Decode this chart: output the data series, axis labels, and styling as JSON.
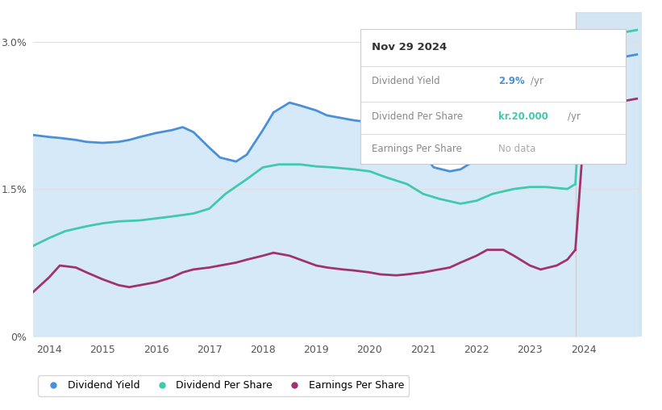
{
  "bg_color": "#ffffff",
  "plot_bg_color": "#ffffff",
  "area_fill_color": "#d6e9f8",
  "future_fill_color": "#cce0f0",
  "grid_color": "#e0e0e0",
  "xticks": [
    2014,
    2015,
    2016,
    2017,
    2018,
    2019,
    2020,
    2021,
    2022,
    2023,
    2024
  ],
  "future_start_x": 2023.85,
  "ylim": [
    0,
    3.3
  ],
  "xlim": [
    2013.7,
    2025.1
  ],
  "tooltip_date": "Nov 29 2024",
  "tooltip_div_yield_label": "Dividend Yield",
  "tooltip_div_yield_value": "2.9%",
  "tooltip_div_yield_unit": "/yr",
  "tooltip_div_per_share_label": "Dividend Per Share",
  "tooltip_div_per_share_value": "kr.20.000",
  "tooltip_div_per_share_unit": "/yr",
  "tooltip_eps_label": "Earnings Per Share",
  "tooltip_eps_value": "No data",
  "div_yield_color": "#4a90d9",
  "div_per_share_color": "#40c8b0",
  "earnings_color": "#a0336e",
  "legend_div_yield": "Dividend Yield",
  "legend_div_per_share": "Dividend Per Share",
  "legend_earnings": "Earnings Per Share",
  "div_yield_x": [
    2013.7,
    2014.0,
    2014.2,
    2014.5,
    2014.7,
    2015.0,
    2015.3,
    2015.5,
    2015.7,
    2016.0,
    2016.3,
    2016.5,
    2016.7,
    2017.0,
    2017.2,
    2017.5,
    2017.7,
    2018.0,
    2018.2,
    2018.5,
    2018.7,
    2019.0,
    2019.2,
    2019.5,
    2019.7,
    2020.0,
    2020.2,
    2020.5,
    2020.7,
    2021.0,
    2021.2,
    2021.5,
    2021.7,
    2022.0,
    2022.2,
    2022.5,
    2022.7,
    2023.0,
    2023.2,
    2023.5,
    2023.7,
    2023.85,
    2024.0,
    2024.2,
    2024.5,
    2024.8,
    2025.0
  ],
  "div_yield_y": [
    2.05,
    2.03,
    2.02,
    2.0,
    1.98,
    1.97,
    1.98,
    2.0,
    2.03,
    2.07,
    2.1,
    2.13,
    2.08,
    1.92,
    1.82,
    1.78,
    1.85,
    2.1,
    2.28,
    2.38,
    2.35,
    2.3,
    2.25,
    2.22,
    2.2,
    2.18,
    2.12,
    2.1,
    2.05,
    1.85,
    1.72,
    1.68,
    1.7,
    1.8,
    1.88,
    1.87,
    1.85,
    1.83,
    1.78,
    1.8,
    1.85,
    1.92,
    2.7,
    2.82,
    2.83,
    2.85,
    2.87
  ],
  "div_per_share_x": [
    2013.7,
    2014.0,
    2014.3,
    2014.7,
    2015.0,
    2015.3,
    2015.7,
    2016.0,
    2016.3,
    2016.7,
    2017.0,
    2017.3,
    2017.7,
    2018.0,
    2018.3,
    2018.7,
    2019.0,
    2019.3,
    2019.7,
    2020.0,
    2020.3,
    2020.7,
    2021.0,
    2021.3,
    2021.7,
    2022.0,
    2022.3,
    2022.7,
    2023.0,
    2023.3,
    2023.7,
    2023.85,
    2024.0,
    2024.3,
    2024.6,
    2024.8,
    2025.0
  ],
  "div_per_share_y": [
    0.92,
    1.0,
    1.07,
    1.12,
    1.15,
    1.17,
    1.18,
    1.2,
    1.22,
    1.25,
    1.3,
    1.45,
    1.6,
    1.72,
    1.75,
    1.75,
    1.73,
    1.72,
    1.7,
    1.68,
    1.62,
    1.55,
    1.45,
    1.4,
    1.35,
    1.38,
    1.45,
    1.5,
    1.52,
    1.52,
    1.5,
    1.55,
    2.9,
    3.05,
    3.08,
    3.1,
    3.12
  ],
  "earnings_x": [
    2013.7,
    2014.0,
    2014.2,
    2014.5,
    2014.7,
    2015.0,
    2015.3,
    2015.5,
    2015.7,
    2016.0,
    2016.3,
    2016.5,
    2016.7,
    2017.0,
    2017.2,
    2017.5,
    2017.7,
    2018.0,
    2018.2,
    2018.5,
    2018.7,
    2019.0,
    2019.2,
    2019.5,
    2019.7,
    2020.0,
    2020.2,
    2020.5,
    2020.7,
    2021.0,
    2021.2,
    2021.5,
    2021.7,
    2022.0,
    2022.2,
    2022.5,
    2022.7,
    2023.0,
    2023.2,
    2023.5,
    2023.7,
    2023.85,
    2024.0,
    2024.2,
    2024.5,
    2024.8,
    2025.0
  ],
  "earnings_y": [
    0.45,
    0.6,
    0.72,
    0.7,
    0.65,
    0.58,
    0.52,
    0.5,
    0.52,
    0.55,
    0.6,
    0.65,
    0.68,
    0.7,
    0.72,
    0.75,
    0.78,
    0.82,
    0.85,
    0.82,
    0.78,
    0.72,
    0.7,
    0.68,
    0.67,
    0.65,
    0.63,
    0.62,
    0.63,
    0.65,
    0.67,
    0.7,
    0.75,
    0.82,
    0.88,
    0.88,
    0.82,
    0.72,
    0.68,
    0.72,
    0.78,
    0.88,
    2.0,
    2.25,
    2.35,
    2.4,
    2.42
  ]
}
